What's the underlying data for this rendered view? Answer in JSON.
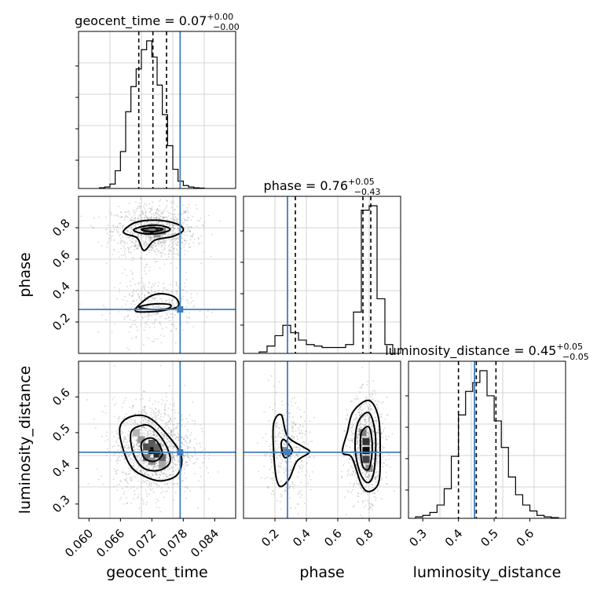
{
  "chart_data": {
    "type": "corner",
    "parameters": [
      "geocent_time",
      "phase",
      "luminosity_distance"
    ],
    "truth": {
      "geocent_time": 0.0774,
      "phase": 0.28,
      "luminosity_distance": 0.445
    },
    "colors": {
      "truth": "#3f7fbf",
      "contour": "#000000",
      "points": "#8a8a8a",
      "grid": "#c8c8c8"
    },
    "grid": true,
    "marginals": [
      {
        "param": "geocent_time",
        "title": {
          "main": "geocent_time = 0.07",
          "sup": "+0.00",
          "sub": "−0.00"
        },
        "xlim": [
          0.058,
          0.088
        ],
        "quantiles": [
          0.0695,
          0.0722,
          0.0748
        ],
        "bin_edges": [
          0.062,
          0.063,
          0.064,
          0.065,
          0.066,
          0.067,
          0.068,
          0.069,
          0.07,
          0.071,
          0.072,
          0.073,
          0.074,
          0.075,
          0.076,
          0.077,
          0.078,
          0.079,
          0.08,
          0.081,
          0.082
        ],
        "counts": [
          0.005,
          0.01,
          0.03,
          0.12,
          0.25,
          0.52,
          0.69,
          0.81,
          0.94,
          1.0,
          0.89,
          0.7,
          0.5,
          0.29,
          0.13,
          0.05,
          0.02,
          0.01,
          0.005,
          0.003
        ]
      },
      {
        "param": "phase",
        "title": {
          "main": "phase = 0.76",
          "sup": "+0.05",
          "sub": "−0.43"
        },
        "xlim": [
          0.0,
          1.0
        ],
        "quantiles": [
          0.33,
          0.76,
          0.81
        ],
        "bin_edges": [
          0.1,
          0.15,
          0.2,
          0.25,
          0.3,
          0.35,
          0.4,
          0.45,
          0.5,
          0.55,
          0.6,
          0.65,
          0.7,
          0.75,
          0.8,
          0.85,
          0.9,
          0.95
        ],
        "counts": [
          0.01,
          0.05,
          0.12,
          0.19,
          0.14,
          0.09,
          0.06,
          0.05,
          0.04,
          0.04,
          0.04,
          0.06,
          0.28,
          0.97,
          1.0,
          0.37,
          0.06
        ]
      },
      {
        "param": "luminosity_distance",
        "title": {
          "main": "luminosity_distance = 0.45",
          "sup": "+0.05",
          "sub": "−0.05"
        },
        "xlim": [
          0.26,
          0.7
        ],
        "quantiles": [
          0.4,
          0.45,
          0.505
        ],
        "bin_edges": [
          0.28,
          0.3,
          0.32,
          0.34,
          0.36,
          0.38,
          0.4,
          0.42,
          0.44,
          0.46,
          0.48,
          0.5,
          0.52,
          0.54,
          0.56,
          0.58,
          0.6,
          0.62,
          0.64,
          0.66,
          0.68
        ],
        "counts": [
          0.01,
          0.02,
          0.04,
          0.09,
          0.2,
          0.42,
          0.7,
          0.86,
          0.92,
          1.0,
          0.83,
          0.66,
          0.48,
          0.28,
          0.16,
          0.09,
          0.05,
          0.02,
          0.01,
          0.005
        ]
      }
    ],
    "pairs": [
      {
        "x": "geocent_time",
        "y": "phase",
        "xlim": [
          0.058,
          0.088
        ],
        "ylim": [
          0.0,
          1.0
        ],
        "ylabel": "phase",
        "yticks": [
          0.2,
          0.4,
          0.6,
          0.8
        ],
        "clusters": [
          {
            "cx": 0.0724,
            "cy": 0.78,
            "sx": 0.0032,
            "sy": 0.065,
            "w": 0.72
          },
          {
            "cx": 0.0724,
            "cy": 0.3,
            "sx": 0.003,
            "sy": 0.075,
            "w": 0.28
          }
        ],
        "contours": [
          [
            [
              0.0667,
              0.785
            ],
            [
              0.069,
              0.835
            ],
            [
              0.073,
              0.848
            ],
            [
              0.0767,
              0.825
            ],
            [
              0.078,
              0.785
            ],
            [
              0.076,
              0.745
            ],
            [
              0.0725,
              0.72
            ],
            [
              0.0705,
              0.655
            ],
            [
              0.0692,
              0.735
            ],
            [
              0.067,
              0.76
            ]
          ],
          [
            [
              0.0685,
              0.785
            ],
            [
              0.0705,
              0.81
            ],
            [
              0.0735,
              0.815
            ],
            [
              0.0755,
              0.79
            ],
            [
              0.0735,
              0.765
            ],
            [
              0.0705,
              0.762
            ]
          ],
          [
            [
              0.07,
              0.79
            ],
            [
              0.072,
              0.8
            ],
            [
              0.074,
              0.793
            ],
            [
              0.073,
              0.778
            ],
            [
              0.071,
              0.778
            ]
          ],
          [
            [
              0.0688,
              0.275
            ],
            [
              0.0715,
              0.36
            ],
            [
              0.074,
              0.38
            ],
            [
              0.0765,
              0.355
            ],
            [
              0.077,
              0.3
            ],
            [
              0.0745,
              0.275
            ],
            [
              0.0715,
              0.265
            ]
          ],
          [
            [
              0.0695,
              0.295
            ],
            [
              0.0725,
              0.315
            ],
            [
              0.0755,
              0.31
            ],
            [
              0.075,
              0.285
            ],
            [
              0.072,
              0.28
            ]
          ]
        ],
        "density_cells": [
          {
            "x": 0.072,
            "y": 0.78,
            "d": 0.95
          },
          {
            "x": 0.073,
            "y": 0.78,
            "d": 0.8
          },
          {
            "x": 0.071,
            "y": 0.78,
            "d": 0.6
          },
          {
            "x": 0.074,
            "y": 0.78,
            "d": 0.5
          },
          {
            "x": 0.072,
            "y": 0.8,
            "d": 0.45
          },
          {
            "x": 0.073,
            "y": 0.76,
            "d": 0.4
          }
        ]
      },
      {
        "x": "geocent_time",
        "y": "luminosity_distance",
        "xlim": [
          0.058,
          0.088
        ],
        "ylim": [
          0.26,
          0.7
        ],
        "xlabel": "geocent_time",
        "ylabel": "luminosity_distance",
        "xticks": [
          0.06,
          0.066,
          0.072,
          0.078,
          0.084
        ],
        "xtick_labels": [
          "0.060",
          "0.066",
          "0.072",
          "0.078",
          "0.084"
        ],
        "yticks": [
          0.3,
          0.4,
          0.5,
          0.6
        ],
        "clusters": [
          {
            "cx": 0.0723,
            "cy": 0.455,
            "sx": 0.003,
            "sy": 0.052,
            "w": 1.0
          }
        ],
        "contours": [
          [
            [
              0.066,
              0.52
            ],
            [
              0.068,
              0.545
            ],
            [
              0.071,
              0.545
            ],
            [
              0.074,
              0.51
            ],
            [
              0.0775,
              0.44
            ],
            [
              0.077,
              0.385
            ],
            [
              0.074,
              0.365
            ],
            [
              0.071,
              0.375
            ],
            [
              0.068,
              0.405
            ],
            [
              0.0662,
              0.47
            ]
          ],
          [
            [
              0.068,
              0.5
            ],
            [
              0.07,
              0.52
            ],
            [
              0.072,
              0.515
            ],
            [
              0.0745,
              0.47
            ],
            [
              0.0755,
              0.42
            ],
            [
              0.0735,
              0.395
            ],
            [
              0.0705,
              0.4
            ],
            [
              0.0685,
              0.44
            ]
          ],
          [
            [
              0.07,
              0.47
            ],
            [
              0.0715,
              0.485
            ],
            [
              0.073,
              0.475
            ],
            [
              0.074,
              0.44
            ],
            [
              0.0725,
              0.42
            ],
            [
              0.0705,
              0.43
            ]
          ]
        ],
        "density_cells": [
          {
            "x": 0.072,
            "y": 0.45,
            "d": 0.95
          },
          {
            "x": 0.073,
            "y": 0.44,
            "d": 0.85
          },
          {
            "x": 0.071,
            "y": 0.46,
            "d": 0.7
          },
          {
            "x": 0.072,
            "y": 0.47,
            "d": 0.65
          },
          {
            "x": 0.074,
            "y": 0.43,
            "d": 0.6
          },
          {
            "x": 0.07,
            "y": 0.48,
            "d": 0.4
          },
          {
            "x": 0.071,
            "y": 0.43,
            "d": 0.55
          },
          {
            "x": 0.073,
            "y": 0.46,
            "d": 0.6
          },
          {
            "x": 0.074,
            "y": 0.41,
            "d": 0.35
          },
          {
            "x": 0.069,
            "y": 0.5,
            "d": 0.3
          },
          {
            "x": 0.072,
            "y": 0.42,
            "d": 0.45
          }
        ]
      },
      {
        "x": "phase",
        "y": "luminosity_distance",
        "xlim": [
          0.0,
          1.0
        ],
        "ylim": [
          0.26,
          0.7
        ],
        "xlabel": "phase",
        "xticks": [
          0.2,
          0.4,
          0.6,
          0.8
        ],
        "xtick_labels": [
          "0.2",
          "0.4",
          "0.6",
          "0.8"
        ],
        "clusters": [
          {
            "cx": 0.78,
            "cy": 0.455,
            "sx": 0.045,
            "sy": 0.055,
            "w": 0.72
          },
          {
            "cx": 0.27,
            "cy": 0.45,
            "sx": 0.06,
            "sy": 0.055,
            "w": 0.28
          }
        ],
        "contours": [
          [
            [
              0.7,
              0.56
            ],
            [
              0.8,
              0.59
            ],
            [
              0.86,
              0.54
            ],
            [
              0.87,
              0.44
            ],
            [
              0.86,
              0.36
            ],
            [
              0.8,
              0.335
            ],
            [
              0.75,
              0.355
            ],
            [
              0.69,
              0.43
            ],
            [
              0.63,
              0.445
            ],
            [
              0.66,
              0.5
            ]
          ],
          [
            [
              0.73,
              0.53
            ],
            [
              0.8,
              0.555
            ],
            [
              0.84,
              0.49
            ],
            [
              0.83,
              0.39
            ],
            [
              0.79,
              0.36
            ],
            [
              0.74,
              0.39
            ],
            [
              0.71,
              0.46
            ]
          ],
          [
            [
              0.75,
              0.5
            ],
            [
              0.8,
              0.515
            ],
            [
              0.82,
              0.46
            ],
            [
              0.8,
              0.4
            ],
            [
              0.76,
              0.405
            ],
            [
              0.745,
              0.45
            ]
          ],
          [
            [
              0.19,
              0.52
            ],
            [
              0.24,
              0.55
            ],
            [
              0.28,
              0.49
            ],
            [
              0.38,
              0.46
            ],
            [
              0.42,
              0.445
            ],
            [
              0.34,
              0.42
            ],
            [
              0.29,
              0.37
            ],
            [
              0.23,
              0.35
            ],
            [
              0.2,
              0.4
            ]
          ],
          [
            [
              0.24,
              0.47
            ],
            [
              0.26,
              0.48
            ],
            [
              0.31,
              0.45
            ],
            [
              0.27,
              0.43
            ],
            [
              0.25,
              0.44
            ]
          ]
        ],
        "density_cells": [
          {
            "x": 0.78,
            "y": 0.45,
            "d": 0.95
          },
          {
            "x": 0.78,
            "y": 0.475,
            "d": 0.8
          },
          {
            "x": 0.78,
            "y": 0.425,
            "d": 0.75
          },
          {
            "x": 0.76,
            "y": 0.5,
            "d": 0.5
          },
          {
            "x": 0.8,
            "y": 0.4,
            "d": 0.45
          },
          {
            "x": 0.26,
            "y": 0.45,
            "d": 0.45
          }
        ]
      }
    ]
  }
}
